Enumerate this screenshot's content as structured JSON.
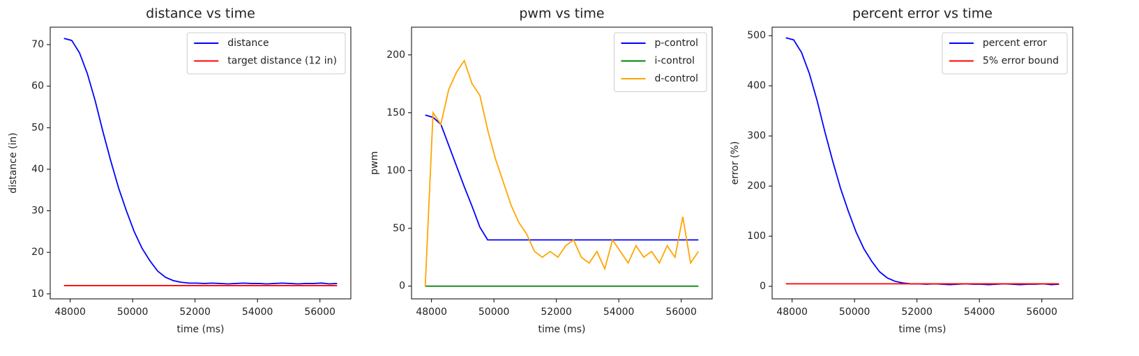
{
  "chart_data": [
    {
      "type": "line",
      "title": "distance vs time",
      "xlabel": "time (ms)",
      "ylabel": "distance (in)",
      "x": [
        47800,
        48050,
        48300,
        48550,
        48800,
        49050,
        49300,
        49550,
        49800,
        50050,
        50300,
        50550,
        50800,
        51050,
        51300,
        51550,
        51800,
        52050,
        52300,
        52550,
        52800,
        53050,
        53300,
        53550,
        53800,
        54050,
        54300,
        54550,
        54800,
        55050,
        55300,
        55550,
        55800,
        56050,
        56300,
        56550
      ],
      "series": [
        {
          "name": "distance",
          "color": "#0000ff",
          "values": [
            71.5,
            71,
            68,
            63,
            56.5,
            49,
            42,
            35.5,
            30,
            25,
            21,
            18,
            15.5,
            14,
            13.2,
            12.8,
            12.6,
            12.6,
            12.5,
            12.6,
            12.5,
            12.4,
            12.5,
            12.6,
            12.5,
            12.5,
            12.4,
            12.5,
            12.6,
            12.5,
            12.4,
            12.5,
            12.5,
            12.6,
            12.4,
            12.5
          ]
        },
        {
          "name": "target distance (12 in)",
          "color": "#ff0000",
          "values": [
            12,
            12,
            12,
            12,
            12,
            12,
            12,
            12,
            12,
            12,
            12,
            12,
            12,
            12,
            12,
            12,
            12,
            12,
            12,
            12,
            12,
            12,
            12,
            12,
            12,
            12,
            12,
            12,
            12,
            12,
            12,
            12,
            12,
            12,
            12,
            12
          ]
        }
      ],
      "xlim": [
        47360,
        56990
      ],
      "ylim": [
        8.8,
        74.2
      ],
      "xticks": [
        48000,
        50000,
        52000,
        54000,
        56000
      ],
      "yticks": [
        10,
        20,
        30,
        40,
        50,
        60,
        70
      ],
      "legend": "upper right"
    },
    {
      "type": "line",
      "title": "pwm vs time",
      "xlabel": "time (ms)",
      "ylabel": "pwm",
      "x": [
        47800,
        48050,
        48300,
        48550,
        48800,
        49050,
        49300,
        49550,
        49800,
        50050,
        50300,
        50550,
        50800,
        51050,
        51300,
        51550,
        51800,
        52050,
        52300,
        52550,
        52800,
        53050,
        53300,
        53550,
        53800,
        54050,
        54300,
        54550,
        54800,
        55050,
        55300,
        55550,
        55800,
        56050,
        56300,
        56550
      ],
      "series": [
        {
          "name": "p-control",
          "color": "#0000ff",
          "values": [
            148,
            146,
            140,
            122,
            104,
            86,
            69,
            51,
            40,
            40,
            40,
            40,
            40,
            40,
            40,
            40,
            40,
            40,
            40,
            40,
            40,
            40,
            40,
            40,
            40,
            40,
            40,
            40,
            40,
            40,
            40,
            40,
            40,
            40,
            40,
            40
          ]
        },
        {
          "name": "i-control",
          "color": "#008000",
          "values": [
            0,
            0,
            0,
            0,
            0,
            0,
            0,
            0,
            0,
            0,
            0,
            0,
            0,
            0,
            0,
            0,
            0,
            0,
            0,
            0,
            0,
            0,
            0,
            0,
            0,
            0,
            0,
            0,
            0,
            0,
            0,
            0,
            0,
            0,
            0,
            0
          ]
        },
        {
          "name": "d-control",
          "color": "#ffa500",
          "values": [
            0,
            150,
            140,
            170,
            185,
            195,
            175,
            165,
            135,
            110,
            90,
            70,
            55,
            45,
            30,
            25,
            30,
            25,
            35,
            40,
            25,
            20,
            30,
            15,
            40,
            30,
            20,
            35,
            25,
            30,
            20,
            35,
            25,
            60,
            20,
            30
          ]
        }
      ],
      "xlim": [
        47360,
        56990
      ],
      "ylim": [
        -11,
        224
      ],
      "xticks": [
        48000,
        50000,
        52000,
        54000,
        56000
      ],
      "yticks": [
        0,
        50,
        100,
        150,
        200
      ],
      "legend": "upper right"
    },
    {
      "type": "line",
      "title": "percent error vs time",
      "xlabel": "time (ms)",
      "ylabel": "error (%)",
      "x": [
        47800,
        48050,
        48300,
        48550,
        48800,
        49050,
        49300,
        49550,
        49800,
        50050,
        50300,
        50550,
        50800,
        51050,
        51300,
        51550,
        51800,
        52050,
        52300,
        52550,
        52800,
        53050,
        53300,
        53550,
        53800,
        54050,
        54300,
        54550,
        54800,
        55050,
        55300,
        55550,
        55800,
        56050,
        56300,
        56550
      ],
      "series": [
        {
          "name": "percent error",
          "color": "#0000ff",
          "values": [
            495.8,
            491.7,
            466.7,
            425,
            370.8,
            308.3,
            250,
            195.8,
            150,
            108.3,
            75,
            50,
            29.2,
            16.7,
            10,
            6.7,
            5,
            5,
            4.2,
            5,
            4.2,
            3.3,
            4.2,
            5,
            4.2,
            4.2,
            3.3,
            4.2,
            5,
            4.2,
            3.3,
            4.2,
            4.2,
            5,
            3.3,
            4.2
          ]
        },
        {
          "name": "5% error bound",
          "color": "#ff0000",
          "values": [
            5,
            5,
            5,
            5,
            5,
            5,
            5,
            5,
            5,
            5,
            5,
            5,
            5,
            5,
            5,
            5,
            5,
            5,
            5,
            5,
            5,
            5,
            5,
            5,
            5,
            5,
            5,
            5,
            5,
            5,
            5,
            5,
            5,
            5,
            5,
            5
          ]
        }
      ],
      "xlim": [
        47360,
        56990
      ],
      "ylim": [
        -25,
        517
      ],
      "xticks": [
        48000,
        50000,
        52000,
        54000,
        56000
      ],
      "yticks": [
        0,
        100,
        200,
        300,
        400,
        500
      ],
      "legend": "upper right"
    }
  ]
}
